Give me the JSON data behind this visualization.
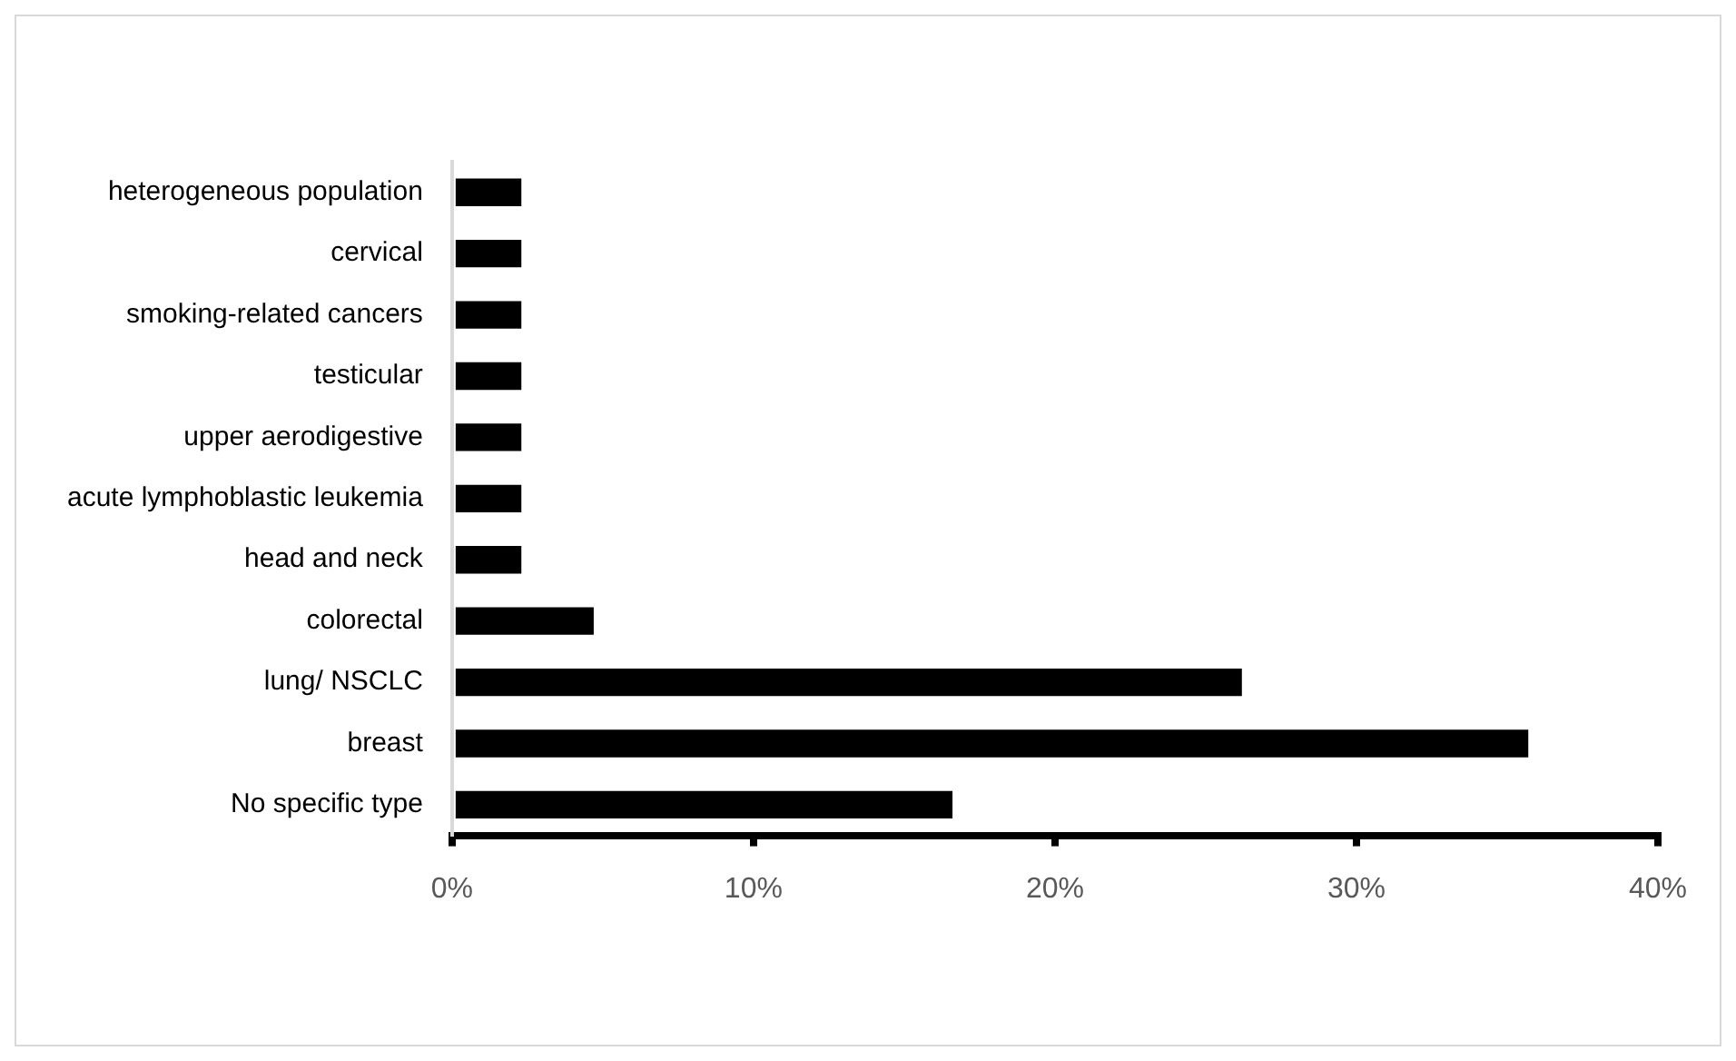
{
  "chart_data": {
    "type": "bar",
    "orientation": "horizontal",
    "categories": [
      "heterogeneous population",
      "cervical",
      "smoking-related cancers",
      "testicular",
      "upper aerodigestive",
      "acute lymphoblastic leukemia",
      "head and neck",
      "colorectal",
      "lung/ NSCLC",
      "breast",
      "No specific type"
    ],
    "values": [
      2.3,
      2.3,
      2.3,
      2.3,
      2.3,
      2.3,
      2.3,
      4.7,
      26.2,
      35.7,
      16.6
    ],
    "color": "#000000",
    "xlim": [
      0,
      40
    ],
    "xticks": [
      {
        "value": 0,
        "label": "0%"
      },
      {
        "value": 10,
        "label": "10%"
      },
      {
        "value": 20,
        "label": "20%"
      },
      {
        "value": 30,
        "label": "30%"
      },
      {
        "value": 40,
        "label": "40%"
      }
    ],
    "grid": false,
    "legend": false
  }
}
